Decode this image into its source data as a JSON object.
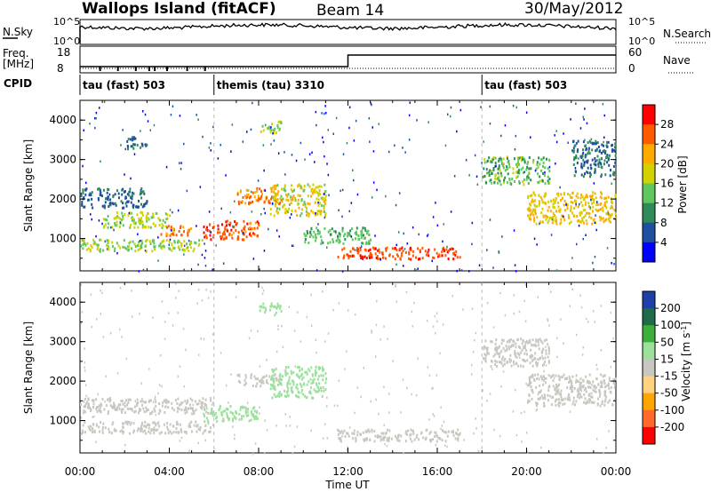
{
  "header": {
    "station": "Wallops Island (fitACF)",
    "beam": "Beam 14",
    "date": "30/May/2012"
  },
  "noise_panel": {
    "left_label": "N.Sky",
    "right_label": "N.Search",
    "left_ticks": [
      "10^5",
      "10^0"
    ],
    "right_ticks": [
      "10^5",
      "10^0"
    ]
  },
  "freq_panel": {
    "left_label_1": "Freq.",
    "left_label_2": "[MHz]",
    "left_ticks": [
      "18",
      "8"
    ],
    "right_label": "Nave",
    "right_ticks": [
      "60",
      "0"
    ],
    "nave_step_hour": 12.0,
    "freq_value": 10
  },
  "cpid_panel": {
    "label": "CPID",
    "segments": [
      {
        "start_hour": 0.0,
        "label": "tau (fast) 503"
      },
      {
        "start_hour": 6.0,
        "label": "themis (tau) 3310"
      },
      {
        "start_hour": 18.0,
        "label": "tau (fast) 503"
      }
    ]
  },
  "power_colorbar": {
    "title": "Power [dB]",
    "ticks": [
      "28",
      "24",
      "20",
      "16",
      "12",
      "8",
      "4"
    ],
    "colors": [
      "#ff0000",
      "#ff5a00",
      "#ffaa00",
      "#d2d200",
      "#5ec85e",
      "#2e8b57",
      "#1e4fa0",
      "#0000ff"
    ]
  },
  "velocity_colorbar": {
    "title_main": "Velocity [m s",
    "title_sup": "-1",
    "title_end": "]",
    "ticks": [
      "200",
      "100",
      "50",
      "15",
      "-15",
      "-50",
      "-100",
      "-200"
    ],
    "colors": [
      "#1c3fa8",
      "#1f6a4a",
      "#3cae3c",
      "#9be09b",
      "#c8c8c0",
      "#ffd27f",
      "#ffa500",
      "#ff6a2a",
      "#ff0000"
    ]
  },
  "chart_data": {
    "type": "heatmap",
    "xlabel": "Time UT",
    "x_ticks": [
      "00:00",
      "04:00",
      "08:00",
      "12:00",
      "16:00",
      "20:00",
      "00:00"
    ],
    "xlim_hours": [
      0,
      24
    ],
    "ylabel": "Slant Range [km]",
    "y_ticks": [
      "4000",
      "3000",
      "2000",
      "1000"
    ],
    "ylim_km": [
      180,
      4500
    ],
    "panels": [
      {
        "name": "power",
        "scatter_regions": [
          {
            "hours": [
              0.0,
              5.5
            ],
            "range_km": [
              700,
              1000
            ],
            "values": [
              12,
              20
            ]
          },
          {
            "hours": [
              1.0,
              4.0
            ],
            "range_km": [
              1300,
              1700
            ],
            "values": [
              14,
              20
            ]
          },
          {
            "hours": [
              3.5,
              5.0
            ],
            "range_km": [
              1100,
              1350
            ],
            "values": [
              22,
              28
            ]
          },
          {
            "hours": [
              0.0,
              3.0
            ],
            "range_km": [
              1800,
              2300
            ],
            "values": [
              4,
              10
            ]
          },
          {
            "hours": [
              2.0,
              3.0
            ],
            "range_km": [
              3300,
              3600
            ],
            "values": [
              4,
              10
            ]
          },
          {
            "hours": [
              5.5,
              6.5
            ],
            "range_km": [
              1000,
              1400
            ],
            "values": [
              24,
              30
            ]
          },
          {
            "hours": [
              6.5,
              8.0
            ],
            "range_km": [
              1000,
              1500
            ],
            "values": [
              22,
              30
            ]
          },
          {
            "hours": [
              7.0,
              9.0
            ],
            "range_km": [
              1900,
              2300
            ],
            "values": [
              20,
              28
            ]
          },
          {
            "hours": [
              8.5,
              11.0
            ],
            "range_km": [
              1600,
              2400
            ],
            "values": [
              14,
              22
            ]
          },
          {
            "hours": [
              8.0,
              9.0
            ],
            "range_km": [
              3700,
              4000
            ],
            "values": [
              12,
              18
            ]
          },
          {
            "hours": [
              10.0,
              13.0
            ],
            "range_km": [
              900,
              1300
            ],
            "values": [
              10,
              16
            ]
          },
          {
            "hours": [
              11.5,
              17.0
            ],
            "range_km": [
              500,
              800
            ],
            "values": [
              24,
              30
            ]
          },
          {
            "hours": [
              18.0,
              21.0
            ],
            "range_km": [
              2400,
              3100
            ],
            "values": [
              8,
              18
            ]
          },
          {
            "hours": [
              20.0,
              24.0
            ],
            "range_km": [
              1400,
              2200
            ],
            "values": [
              16,
              24
            ]
          },
          {
            "hours": [
              22.0,
              24.0
            ],
            "range_km": [
              2600,
              3500
            ],
            "values": [
              4,
              12
            ]
          }
        ]
      },
      {
        "name": "velocity",
        "scatter_regions": [
          {
            "hours": [
              0.0,
              6.0
            ],
            "range_km": [
              700,
              1000
            ],
            "values": [
              -15,
              15
            ]
          },
          {
            "hours": [
              0.0,
              6.0
            ],
            "range_km": [
              1200,
              1600
            ],
            "values": [
              -15,
              15
            ]
          },
          {
            "hours": [
              5.5,
              8.0
            ],
            "range_km": [
              1000,
              1400
            ],
            "values": [
              15,
              50
            ]
          },
          {
            "hours": [
              7.0,
              9.0
            ],
            "range_km": [
              1900,
              2200
            ],
            "values": [
              -15,
              15
            ]
          },
          {
            "hours": [
              8.0,
              9.0
            ],
            "range_km": [
              3700,
              4000
            ],
            "values": [
              15,
              50
            ]
          },
          {
            "hours": [
              8.5,
              11.0
            ],
            "range_km": [
              1600,
              2400
            ],
            "values": [
              15,
              50
            ]
          },
          {
            "hours": [
              11.5,
              17.0
            ],
            "range_km": [
              500,
              800
            ],
            "values": [
              -15,
              15
            ]
          },
          {
            "hours": [
              18.0,
              21.0
            ],
            "range_km": [
              2400,
              3100
            ],
            "values": [
              -15,
              15
            ]
          },
          {
            "hours": [
              20.0,
              24.0
            ],
            "range_km": [
              1400,
              2200
            ],
            "values": [
              -15,
              15
            ]
          }
        ]
      }
    ]
  }
}
